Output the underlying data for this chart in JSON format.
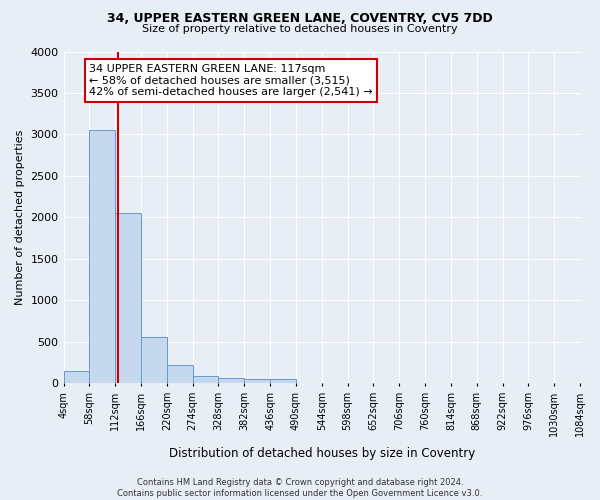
{
  "title1": "34, UPPER EASTERN GREEN LANE, COVENTRY, CV5 7DD",
  "title2": "Size of property relative to detached houses in Coventry",
  "xlabel": "Distribution of detached houses by size in Coventry",
  "ylabel": "Number of detached properties",
  "bin_labels": [
    "4sqm",
    "58sqm",
    "112sqm",
    "166sqm",
    "220sqm",
    "274sqm",
    "328sqm",
    "382sqm",
    "436sqm",
    "490sqm",
    "544sqm",
    "598sqm",
    "652sqm",
    "706sqm",
    "760sqm",
    "814sqm",
    "868sqm",
    "922sqm",
    "976sqm",
    "1030sqm",
    "1084sqm"
  ],
  "bin_edges": [
    4,
    58,
    112,
    166,
    220,
    274,
    328,
    382,
    436,
    490,
    544,
    598,
    652,
    706,
    760,
    814,
    868,
    922,
    976,
    1030,
    1084
  ],
  "bar_heights": [
    150,
    3050,
    2050,
    560,
    220,
    80,
    55,
    45,
    45,
    0,
    0,
    0,
    0,
    0,
    0,
    0,
    0,
    0,
    0,
    0
  ],
  "bar_color": "#c5d8ee",
  "bar_edgecolor": "#6699cc",
  "vline_x": 117,
  "vline_color": "#cc0000",
  "annotation_lines": [
    "34 UPPER EASTERN GREEN LANE: 117sqm",
    "← 58% of detached houses are smaller (3,515)",
    "42% of semi-detached houses are larger (2,541) →"
  ],
  "annotation_box_color": "#ffffff",
  "annotation_box_edgecolor": "#cc0000",
  "ylim": [
    0,
    4000
  ],
  "yticks": [
    0,
    500,
    1000,
    1500,
    2000,
    2500,
    3000,
    3500,
    4000
  ],
  "background_color": "#e8eef5",
  "grid_color": "#ffffff",
  "footer_line1": "Contains HM Land Registry data © Crown copyright and database right 2024.",
  "footer_line2": "Contains public sector information licensed under the Open Government Licence v3.0."
}
